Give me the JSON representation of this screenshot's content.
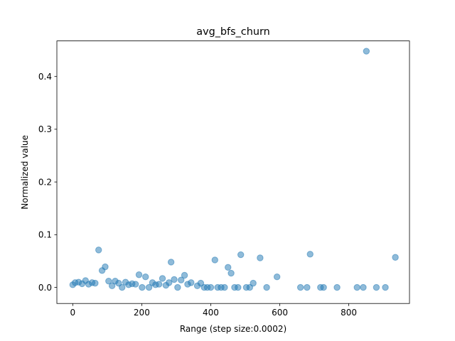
{
  "chart_data": {
    "type": "scatter",
    "title": "avg_bfs_churn",
    "xlabel": "Range (step size:0.0002)",
    "ylabel": "Normalized value",
    "xlim": [
      -46,
      976
    ],
    "ylim": [
      -0.0305,
      0.4675
    ],
    "xticks": [
      0,
      200,
      400,
      600,
      800
    ],
    "xtick_labels": [
      "0",
      "200",
      "400",
      "600",
      "800"
    ],
    "yticks": [
      0.0,
      0.1,
      0.2,
      0.3,
      0.4
    ],
    "ytick_labels": [
      "0.0",
      "0.1",
      "0.2",
      "0.3",
      "0.4"
    ],
    "grid": false,
    "color": "#1f77b4",
    "alpha": 0.5,
    "series": [
      {
        "points": [
          [
            0,
            0.005
          ],
          [
            7,
            0.009
          ],
          [
            17,
            0.01
          ],
          [
            27,
            0.007
          ],
          [
            37,
            0.013
          ],
          [
            46,
            0.006
          ],
          [
            56,
            0.009
          ],
          [
            65,
            0.008
          ],
          [
            75,
            0.071
          ],
          [
            85,
            0.032
          ],
          [
            94,
            0.039
          ],
          [
            104,
            0.012
          ],
          [
            114,
            0.003
          ],
          [
            123,
            0.012
          ],
          [
            133,
            0.008
          ],
          [
            143,
            0.0
          ],
          [
            153,
            0.01
          ],
          [
            162,
            0.005
          ],
          [
            172,
            0.007
          ],
          [
            182,
            0.006
          ],
          [
            192,
            0.024
          ],
          [
            201,
            0.0
          ],
          [
            211,
            0.02
          ],
          [
            221,
            0.0
          ],
          [
            231,
            0.009
          ],
          [
            240,
            0.005
          ],
          [
            250,
            0.006
          ],
          [
            260,
            0.017
          ],
          [
            270,
            0.004
          ],
          [
            279,
            0.009
          ],
          [
            285,
            0.048
          ],
          [
            294,
            0.015
          ],
          [
            304,
            0.0
          ],
          [
            314,
            0.014
          ],
          [
            324,
            0.023
          ],
          [
            333,
            0.006
          ],
          [
            343,
            0.009
          ],
          [
            361,
            0.003
          ],
          [
            371,
            0.008
          ],
          [
            381,
            0.0
          ],
          [
            390,
            0.0
          ],
          [
            400,
            0.0
          ],
          [
            412,
            0.052
          ],
          [
            420,
            0.0
          ],
          [
            430,
            0.0
          ],
          [
            440,
            0.0
          ],
          [
            450,
            0.038
          ],
          [
            459,
            0.027
          ],
          [
            469,
            0.0
          ],
          [
            479,
            0.0
          ],
          [
            487,
            0.062
          ],
          [
            503,
            0.0
          ],
          [
            513,
            0.0
          ],
          [
            523,
            0.008
          ],
          [
            543,
            0.056
          ],
          [
            562,
            0.0
          ],
          [
            592,
            0.02
          ],
          [
            660,
            0.0
          ],
          [
            679,
            0.0
          ],
          [
            688,
            0.063
          ],
          [
            718,
            0.0
          ],
          [
            727,
            0.0
          ],
          [
            766,
            0.0
          ],
          [
            824,
            0.0
          ],
          [
            842,
            0.0
          ],
          [
            851,
            0.448
          ],
          [
            880,
            0.0
          ],
          [
            906,
            0.0
          ],
          [
            935,
            0.057
          ]
        ]
      }
    ]
  }
}
